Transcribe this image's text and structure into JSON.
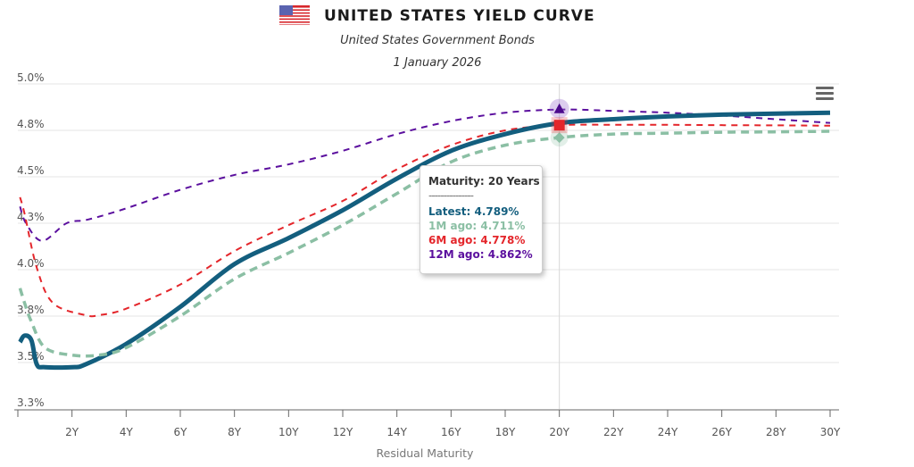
{
  "header": {
    "flag_icon": "us-flag-icon",
    "title": "UNITED STATES YIELD CURVE",
    "subtitle": "United States Government Bonds",
    "date": "1 January 2026"
  },
  "menu": {
    "icon": "hamburger-menu-icon"
  },
  "tooltip": {
    "title": "Maturity: 20 Years",
    "separator": "---------------",
    "lines": [
      {
        "label": "Latest: 4.789%",
        "series": "Latest"
      },
      {
        "label": "1M ago: 4.711%",
        "series": "1M ago"
      },
      {
        "label": "6M ago: 4.778%",
        "series": "6M ago"
      },
      {
        "label": "12M ago: 4.862%",
        "series": "12M ago"
      }
    ]
  },
  "chart_data": {
    "type": "line",
    "title": "UNITED STATES YIELD CURVE",
    "subtitle": "United States Government Bonds",
    "date": "1 January 2026",
    "xlabel": "Residual Maturity",
    "ylabel": "",
    "xlim": [
      0,
      30
    ],
    "ylim": [
      3.25,
      5.0
    ],
    "x_ticks": [
      0,
      2,
      4,
      6,
      8,
      10,
      12,
      14,
      16,
      18,
      20,
      22,
      24,
      26,
      28,
      30
    ],
    "x_tick_labels": [
      "",
      "2Y",
      "4Y",
      "6Y",
      "8Y",
      "10Y",
      "12Y",
      "14Y",
      "16Y",
      "18Y",
      "20Y",
      "22Y",
      "24Y",
      "26Y",
      "28Y",
      "30Y"
    ],
    "y_ticks": [
      3.25,
      3.5,
      3.75,
      4.0,
      4.25,
      4.5,
      4.75,
      5.0
    ],
    "y_tick_labels": [
      "3.3%",
      "3.5%",
      "3.8%",
      "4.0%",
      "4.3%",
      "4.5%",
      "4.8%",
      "5.0%"
    ],
    "grid": true,
    "highlight_x": 20,
    "series": [
      {
        "name": "12M ago",
        "color": "#5b0f9e",
        "style": "dashed",
        "marker": "triangle",
        "x": [
          0.08,
          0.3,
          0.9,
          1.8,
          2.6,
          4,
          6,
          8,
          10,
          12,
          14,
          16,
          18,
          20,
          22,
          24,
          26,
          28,
          30
        ],
        "y": [
          4.34,
          4.25,
          4.155,
          4.25,
          4.27,
          4.33,
          4.43,
          4.51,
          4.567,
          4.64,
          4.73,
          4.8,
          4.845,
          4.862,
          4.855,
          4.845,
          4.83,
          4.81,
          4.79
        ]
      },
      {
        "name": "6M ago",
        "color": "#e4262b",
        "style": "dashed",
        "marker": "square",
        "x": [
          0.08,
          0.25,
          0.7,
          1.3,
          2.5,
          3,
          4,
          6,
          8,
          10,
          12,
          14,
          16,
          18,
          20,
          22,
          24,
          26,
          28,
          30
        ],
        "y": [
          4.39,
          4.3,
          4.01,
          3.82,
          3.755,
          3.755,
          3.79,
          3.92,
          4.1,
          4.24,
          4.37,
          4.54,
          4.67,
          4.75,
          4.778,
          4.78,
          4.78,
          4.778,
          4.777,
          4.775
        ]
      },
      {
        "name": "Latest",
        "color": "#135e7e",
        "style": "solid",
        "marker": "circle",
        "x": [
          0.08,
          0.25,
          0.5,
          0.7,
          1,
          2,
          2.5,
          4,
          6,
          8,
          10,
          12,
          14,
          16,
          18,
          20,
          22,
          24,
          26,
          28,
          30
        ],
        "y": [
          3.61,
          3.645,
          3.62,
          3.49,
          3.475,
          3.475,
          3.49,
          3.6,
          3.8,
          4.03,
          4.17,
          4.32,
          4.49,
          4.64,
          4.73,
          4.789,
          4.81,
          4.825,
          4.835,
          4.84,
          4.845
        ]
      },
      {
        "name": "1M ago",
        "color": "#8bbfa4",
        "style": "dashed",
        "marker": "diamond",
        "x": [
          0.08,
          0.25,
          0.5,
          1,
          2,
          3,
          4,
          6,
          8,
          10,
          12,
          14,
          16,
          18,
          20,
          22,
          24,
          26,
          28,
          30
        ],
        "y": [
          3.9,
          3.82,
          3.72,
          3.58,
          3.54,
          3.54,
          3.58,
          3.75,
          3.95,
          4.09,
          4.24,
          4.41,
          4.58,
          4.67,
          4.711,
          4.73,
          4.735,
          4.74,
          4.742,
          4.745
        ]
      }
    ]
  }
}
